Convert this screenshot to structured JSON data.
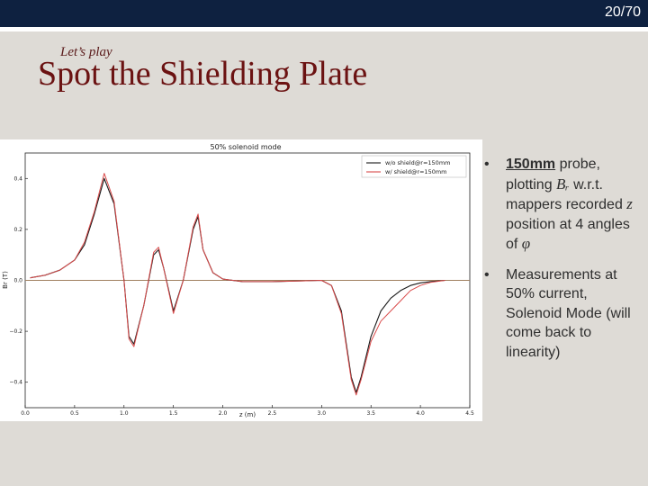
{
  "slide": {
    "page_number": "20/70",
    "subtitle": "Let’s play",
    "title": "Spot the Shielding Plate"
  },
  "bullets": [
    {
      "highlight": "150mm",
      "text_1": " probe, plotting ",
      "math_1": "Bᵣ",
      "text_2": " w.r.t. mappers recorded ",
      "math_2": "z",
      "text_3": " position at 4 angles of ",
      "math_3": "φ"
    },
    {
      "text": "Measurements at 50% current, Solenoid Mode (will come back to linearity)"
    }
  ],
  "chart_data": {
    "type": "line",
    "title": "50% solenoid mode",
    "xlabel": "z (m)",
    "ylabel": "Br (T)",
    "xlim": [
      0,
      4.5
    ],
    "ylim": [
      -0.5,
      0.5
    ],
    "xticks": [
      "0.0",
      "0.5",
      "1.0",
      "1.5",
      "2.0",
      "2.5",
      "3.0",
      "3.5",
      "4.0",
      "4.5"
    ],
    "yticks": [
      "0.4",
      "0.2",
      "0.0",
      "−0.2",
      "−0.4"
    ],
    "legend_position": "top-right",
    "series": [
      {
        "name": "w/o shield@r=150mm",
        "color": "#1a1a1a",
        "x": [
          0.05,
          0.2,
          0.35,
          0.5,
          0.6,
          0.7,
          0.8,
          0.9,
          1.0,
          1.05,
          1.1,
          1.2,
          1.3,
          1.35,
          1.4,
          1.5,
          1.6,
          1.7,
          1.75,
          1.8,
          1.9,
          2.0,
          2.2,
          2.5,
          2.8,
          3.0,
          3.1,
          3.2,
          3.3,
          3.35,
          3.4,
          3.5,
          3.6,
          3.7,
          3.8,
          3.9,
          4.0,
          4.1,
          4.25
        ],
        "y": [
          0.01,
          0.02,
          0.04,
          0.08,
          0.14,
          0.26,
          0.4,
          0.3,
          0.0,
          -0.22,
          -0.25,
          -0.1,
          0.1,
          0.12,
          0.05,
          -0.12,
          0.0,
          0.2,
          0.25,
          0.12,
          0.03,
          0.005,
          -0.005,
          -0.005,
          -0.002,
          0.0,
          -0.02,
          -0.12,
          -0.38,
          -0.44,
          -0.38,
          -0.22,
          -0.12,
          -0.07,
          -0.04,
          -0.02,
          -0.01,
          -0.005,
          0.0
        ]
      },
      {
        "name": "w/ shield@r=150mm",
        "color": "#d94a4a",
        "x": [
          0.05,
          0.2,
          0.35,
          0.5,
          0.6,
          0.7,
          0.8,
          0.9,
          1.0,
          1.05,
          1.1,
          1.2,
          1.3,
          1.35,
          1.4,
          1.5,
          1.6,
          1.7,
          1.75,
          1.8,
          1.9,
          2.0,
          2.2,
          2.5,
          2.8,
          3.0,
          3.1,
          3.2,
          3.3,
          3.35,
          3.4,
          3.5,
          3.6,
          3.7,
          3.8,
          3.9,
          4.0,
          4.1,
          4.25
        ],
        "y": [
          0.01,
          0.02,
          0.04,
          0.08,
          0.15,
          0.27,
          0.42,
          0.31,
          0.0,
          -0.23,
          -0.26,
          -0.1,
          0.11,
          0.13,
          0.05,
          -0.13,
          0.0,
          0.21,
          0.26,
          0.12,
          0.03,
          0.005,
          -0.005,
          -0.005,
          -0.002,
          0.0,
          -0.02,
          -0.13,
          -0.39,
          -0.45,
          -0.39,
          -0.24,
          -0.16,
          -0.12,
          -0.08,
          -0.04,
          -0.02,
          -0.008,
          0.0
        ]
      }
    ],
    "grid": false,
    "zero_line": true
  }
}
